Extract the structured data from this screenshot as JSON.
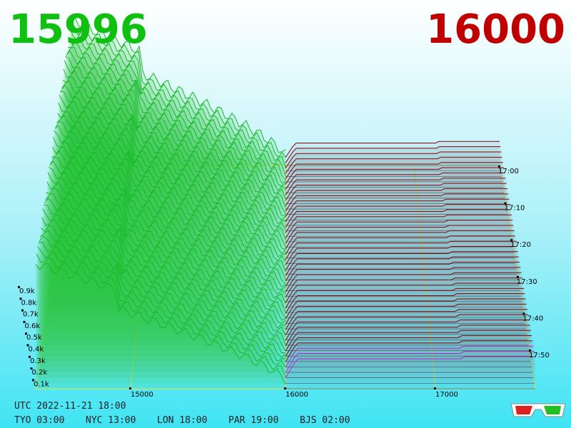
{
  "header": {
    "bid": "15996",
    "ask": "16000"
  },
  "depth_axis": {
    "labels": [
      "0.9k",
      "0.8k",
      "0.7k",
      "0.6k",
      "0.5k",
      "0.4k",
      "0.3k",
      "0.2k",
      "0.1k"
    ]
  },
  "price_axis": {
    "labels": [
      "15000",
      "16000",
      "17000"
    ]
  },
  "time_axis": {
    "labels": [
      "17:00",
      "17:10",
      "17:20",
      "17:30",
      "17:40",
      "17:50"
    ]
  },
  "clock": {
    "utc": "UTC 2022-11-21 18:00",
    "cities": [
      "TYO 03:00",
      "NYC 13:00",
      "LON 18:00",
      "PAR 19:00",
      "BJS 02:00"
    ]
  }
}
